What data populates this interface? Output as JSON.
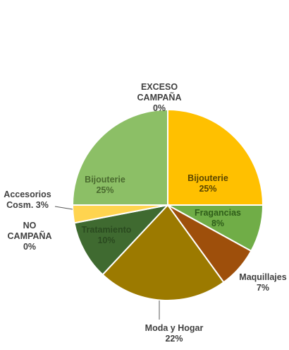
{
  "chart_data": {
    "type": "pie",
    "title": "",
    "slices": [
      {
        "label": [
          "Bijouterie",
          "25%"
        ],
        "value": 25,
        "color": "#FFC000",
        "text_color": "#5a4500",
        "label_pos": "inside"
      },
      {
        "label": [
          "Fragancias",
          "8%"
        ],
        "value": 8,
        "color": "#70AD47",
        "text_color": "#2f5e1a",
        "label_pos": "inside"
      },
      {
        "label": [
          "Maquillajes",
          "7%"
        ],
        "value": 7,
        "color": "#9E4F0B",
        "text_color": "#404040",
        "label_pos": "outside"
      },
      {
        "label": [
          "Moda y Hogar",
          "22%"
        ],
        "value": 22,
        "color": "#9C7A00",
        "text_color": "#404040",
        "label_pos": "outside"
      },
      {
        "label": [
          "Tratamiento",
          "10%"
        ],
        "value": 10,
        "color": "#3F6A30",
        "text_color": "#2a4a1f",
        "label_pos": "inside"
      },
      {
        "label": [
          "NO",
          "CAMPAÑA",
          "0%"
        ],
        "value": 0,
        "color": "#A9D18E",
        "text_color": "#404040",
        "label_pos": "outside"
      },
      {
        "label": [
          "Accesorios",
          "Cosm. 3%"
        ],
        "value": 3,
        "color": "#FFD44F",
        "text_color": "#404040",
        "label_pos": "outside"
      },
      {
        "label": [
          "Bijouterie",
          "25%"
        ],
        "value": 25,
        "color": "#8CBF66",
        "text_color": "#4a6a2f",
        "label_pos": "inside"
      },
      {
        "label": [
          "EXCESO",
          "CAMPAÑA",
          "0%"
        ],
        "value": 0,
        "color": "#C5E0B4",
        "text_color": "#404040",
        "label_pos": "outside"
      }
    ],
    "legend": "none"
  }
}
